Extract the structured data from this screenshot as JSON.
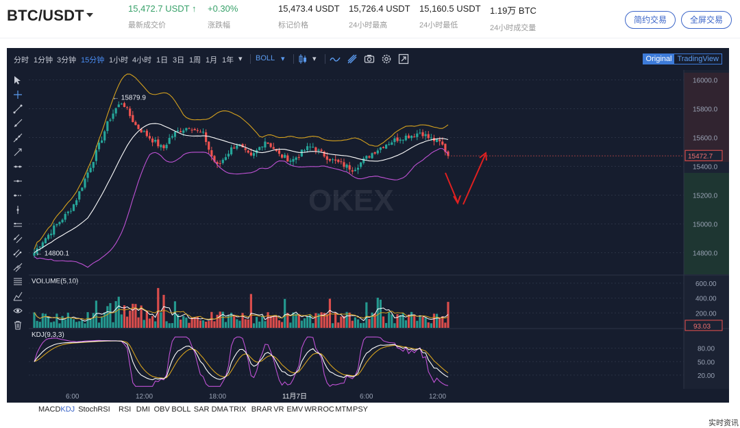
{
  "header": {
    "pair": "BTC/USDT",
    "last_price": "15,472.7 USDT",
    "last_arrow": "↑",
    "last_label": "最新成交价",
    "change": "+0.30%",
    "change_label": "涨跌幅",
    "mark_price": "15,473.4 USDT",
    "mark_label": "标记价格",
    "high": "15,726.4 USDT",
    "high_label": "24小时最高",
    "low": "15,160.5 USDT",
    "low_label": "24小时最低",
    "volume": "1.19万 BTC",
    "volume_label": "24小时成交量",
    "btn_simple": "简约交易",
    "btn_full": "全屏交易"
  },
  "toolbar": {
    "intervals": [
      "分时",
      "1分钟",
      "3分钟",
      "15分钟",
      "1小时",
      "4小时",
      "1日",
      "3日",
      "1周",
      "1月",
      "1年"
    ],
    "active_interval": "15分钟",
    "more_caret": "▾",
    "indicator": "BOLL",
    "view_original": "Original",
    "view_tradingview": "TradingView"
  },
  "watermark": "OKEX",
  "colors": {
    "up": "#26a69a",
    "down": "#ef5350",
    "boll_upper": "#d6a21e",
    "boll_mid": "#ffffff",
    "boll_lower": "#c052d6",
    "kdj_k": "#ffffff",
    "kdj_d": "#d6a21e",
    "kdj_j": "#c052d6",
    "arrow": "#e02020"
  },
  "chart_data": {
    "type": "candlestick",
    "main": {
      "indicator_label": "BOLL",
      "y_ticks": [
        "16000.0",
        "15800.0",
        "15600.0",
        "15400.0",
        "15200.0",
        "15000.0",
        "14800.0"
      ],
      "y_range": [
        14650,
        16050
      ],
      "current_price_tag": "15472.7",
      "high_annotation": "← 15879.9",
      "low_annotation": "← 14800.1",
      "high_value": 15879.9,
      "low_value": 14800.1,
      "close_path": [
        14800,
        14870,
        14920,
        14980,
        15030,
        15080,
        15150,
        15260,
        15370,
        15480,
        15600,
        15720,
        15800,
        15850,
        15760,
        15680,
        15640,
        15600,
        15560,
        15520,
        15600,
        15640,
        15660,
        15680,
        15640,
        15620,
        15480,
        15400,
        15460,
        15520,
        15560,
        15500,
        15460,
        15520,
        15580,
        15540,
        15480,
        15460,
        15440,
        15480,
        15520,
        15540,
        15500,
        15470,
        15440,
        15420,
        15400,
        15380,
        15420,
        15460,
        15500,
        15530,
        15560,
        15580,
        15600,
        15610,
        15620,
        15640,
        15600,
        15580,
        15560,
        15472.7
      ]
    },
    "volume": {
      "label": "VOLUME(5,10)",
      "y_ticks": [
        "600.00",
        "400.00",
        "200.00"
      ],
      "current_tag": "93.03"
    },
    "kdj": {
      "label": "KDJ(9,3,3)",
      "y_ticks": [
        "80.00",
        "50.00",
        "20.00"
      ]
    },
    "x_ticks": [
      "6:00",
      "12:00",
      "18:00",
      "11月7日",
      "6:00",
      "12:00"
    ]
  },
  "bottom_tabs": [
    "MACD",
    "KDJ",
    "StochRSI",
    "RSI",
    "DMI",
    "OBV",
    "BOLL",
    "SAR",
    "DMA",
    "TRIX",
    "BRAR",
    "VR",
    "EMV",
    "WR",
    "ROC",
    "MTM",
    "PSY"
  ],
  "active_tab": "KDJ",
  "corner_text": "实时资讯"
}
